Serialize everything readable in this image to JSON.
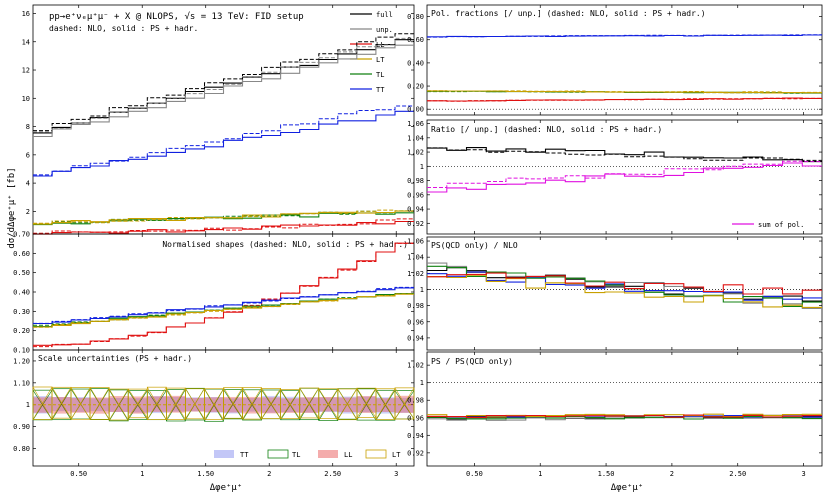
{
  "colors": {
    "full": "#000000",
    "unp": "#888888",
    "LL": "#e01010",
    "LT": "#c8a000",
    "TL": "#108010",
    "TT": "#1020e0",
    "sum": "#e010e0"
  },
  "chart_data": [
    {
      "id": "main",
      "type": "line",
      "title": "pp→e⁺νₑμ⁺μ⁻ + X @ NLOPS, √s = 13 TeV: FID setup",
      "subtitle": "dashed: NLO, solid : PS + hadr.",
      "ylabel": "dσ/dΔφe⁺μ⁺ [fb]",
      "xlim": [
        0.14,
        3.14
      ],
      "ylim": [
        0.4,
        16.6
      ],
      "yticks": [
        2,
        4,
        6,
        8,
        10,
        12,
        14,
        16
      ],
      "legend": [
        "full",
        "unp.",
        "LL",
        "LT",
        "TL",
        "TT"
      ],
      "series": [
        {
          "name": "full",
          "color": "#000000",
          "solid": [
            7.5,
            14.3
          ],
          "dashed": [
            7.6,
            14.8
          ]
        },
        {
          "name": "unp.",
          "color": "#888888",
          "solid": [
            7.2,
            14.0
          ],
          "dashed": [
            7.4,
            14.4
          ]
        },
        {
          "name": "TT",
          "color": "#1020e0",
          "solid": [
            4.5,
            9.1
          ],
          "dashed": [
            4.5,
            9.7
          ]
        },
        {
          "name": "TL",
          "color": "#108010",
          "solid": [
            1.1,
            1.95
          ],
          "dashed": [
            1.1,
            2.05
          ]
        },
        {
          "name": "LT",
          "color": "#c8a000",
          "solid": [
            1.15,
            2.0
          ],
          "dashed": [
            1.15,
            2.1
          ]
        },
        {
          "name": "LL",
          "color": "#e01010",
          "solid": [
            0.5,
            1.35
          ],
          "dashed": [
            0.5,
            1.4
          ]
        }
      ]
    },
    {
      "id": "shapes",
      "type": "line",
      "title": "Normalised shapes (dashed: NLO, solid : PS + hadr.)",
      "xlim": [
        0.14,
        3.14
      ],
      "ylim": [
        0.1,
        0.7
      ],
      "yticks": [
        0.1,
        0.2,
        0.3,
        0.4,
        0.5,
        0.6,
        0.7
      ],
      "series": [
        {
          "name": "LL",
          "color": "#e01010",
          "solid": [
            0.12,
            0.68
          ],
          "dashed": [
            0.12,
            0.68
          ]
        },
        {
          "name": "TT",
          "color": "#1020e0",
          "solid": [
            0.23,
            0.43
          ],
          "dashed": [
            0.23,
            0.43
          ]
        },
        {
          "name": "TL",
          "color": "#108010",
          "solid": [
            0.22,
            0.4
          ],
          "dashed": [
            0.22,
            0.4
          ]
        },
        {
          "name": "LT",
          "color": "#c8a000",
          "solid": [
            0.215,
            0.395
          ],
          "dashed": [
            0.215,
            0.395
          ]
        }
      ]
    },
    {
      "id": "scale",
      "type": "area",
      "title": "Scale uncertainties (PS + hadr.)",
      "xlabel": "Δφe⁺μ⁺",
      "xlim": [
        0.14,
        3.14
      ],
      "ylim": [
        0.72,
        1.25
      ],
      "yticks": [
        0.8,
        0.9,
        1.0,
        1.1,
        1.2
      ],
      "xticks": [
        0.5,
        1.0,
        1.5,
        2.0,
        2.5,
        3.0
      ],
      "bands": [
        {
          "name": "TT",
          "color": "#1020e0",
          "lo": 0.965,
          "hi": 1.035
        },
        {
          "name": "TL",
          "color": "#108010",
          "lo": 0.93,
          "hi": 1.07
        },
        {
          "name": "LL",
          "color": "#e01010",
          "lo": 0.965,
          "hi": 1.035
        },
        {
          "name": "LT",
          "color": "#c8a000",
          "lo": 0.935,
          "hi": 1.075
        }
      ]
    },
    {
      "id": "fractions",
      "type": "line",
      "title": "Pol. fractions [/ unp.]  (dashed: NLO, solid : PS + hadr.)",
      "xlim": [
        0.14,
        3.14
      ],
      "ylim": [
        -0.05,
        0.9
      ],
      "yticks": [
        0.0,
        0.2,
        0.4,
        0.6,
        0.8
      ],
      "series": [
        {
          "name": "TT",
          "color": "#1020e0",
          "solid": [
            0.625,
            0.64
          ],
          "dashed": [
            0.625,
            0.645
          ]
        },
        {
          "name": "TL",
          "color": "#108010",
          "solid": [
            0.155,
            0.14
          ],
          "dashed": [
            0.155,
            0.14
          ]
        },
        {
          "name": "LT",
          "color": "#c8a000",
          "solid": [
            0.16,
            0.14
          ],
          "dashed": [
            0.16,
            0.145
          ]
        },
        {
          "name": "LL",
          "color": "#e01010",
          "solid": [
            0.07,
            0.095
          ],
          "dashed": [
            0.07,
            0.095
          ]
        }
      ]
    },
    {
      "id": "ratio",
      "type": "line",
      "title": "Ratio [/ unp.] (dashed: NLO, solid : PS + hadr.)",
      "xlim": [
        0.14,
        3.14
      ],
      "ylim": [
        0.905,
        1.065
      ],
      "yticks": [
        0.92,
        0.94,
        0.96,
        0.98,
        1.0,
        1.02,
        1.04,
        1.06
      ],
      "legend": [
        "sum of pol."
      ],
      "series": [
        {
          "name": "full",
          "color": "#000000",
          "solid": [
            1.027,
            1.01
          ],
          "dashed": [
            1.024,
            1.008
          ]
        },
        {
          "name": "sum of pol.",
          "color": "#e010e0",
          "solid": [
            0.964,
            1.004
          ],
          "dashed": [
            0.969,
            1.006
          ]
        }
      ]
    },
    {
      "id": "ps_nlo",
      "type": "line",
      "title": "PS(QCD only) / NLO",
      "xlim": [
        0.14,
        3.14
      ],
      "ylim": [
        0.925,
        1.065
      ],
      "yticks": [
        0.94,
        0.96,
        0.98,
        1.0,
        1.02,
        1.04,
        1.06
      ],
      "series": [
        {
          "name": "full",
          "color": "#000000",
          "solid": [
            1.025,
            0.985
          ]
        },
        {
          "name": "unp.",
          "color": "#888888",
          "solid": [
            1.03,
            0.98
          ]
        },
        {
          "name": "TT",
          "color": "#1020e0",
          "solid": [
            1.02,
            0.985
          ]
        },
        {
          "name": "TL",
          "color": "#108010",
          "solid": [
            1.025,
            0.98
          ]
        },
        {
          "name": "LT",
          "color": "#c8a000",
          "solid": [
            1.02,
            0.975
          ]
        },
        {
          "name": "LL",
          "color": "#e01010",
          "solid": [
            1.02,
            0.995
          ]
        }
      ]
    },
    {
      "id": "ps_psqcd",
      "type": "line",
      "title": "PS / PS(QCD only)",
      "xlabel": "Δφe⁺μ⁺",
      "xlim": [
        0.14,
        3.14
      ],
      "ylim": [
        0.905,
        1.035
      ],
      "yticks": [
        0.92,
        0.94,
        0.96,
        0.98,
        1.0,
        1.02
      ],
      "xticks": [
        0.5,
        1.0,
        1.5,
        2.0,
        2.5,
        3.0
      ],
      "series": [
        {
          "name": "full",
          "color": "#000000",
          "solid": [
            0.96,
            0.962
          ]
        },
        {
          "name": "unp.",
          "color": "#888888",
          "solid": [
            0.958,
            0.961
          ]
        },
        {
          "name": "TT",
          "color": "#1020e0",
          "solid": [
            0.961,
            0.962
          ]
        },
        {
          "name": "TL",
          "color": "#108010",
          "solid": [
            0.96,
            0.96
          ]
        },
        {
          "name": "LT",
          "color": "#c8a000",
          "solid": [
            0.962,
            0.963
          ]
        },
        {
          "name": "LL",
          "color": "#e01010",
          "solid": [
            0.961,
            0.962
          ]
        }
      ]
    }
  ]
}
